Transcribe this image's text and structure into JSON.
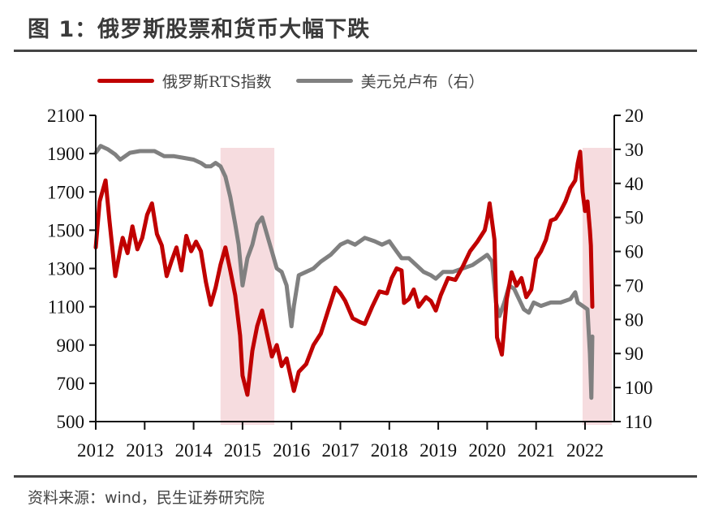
{
  "title": "图 1：俄罗斯股票和货币大幅下跌",
  "source": "资料来源：wind，民生证券研究院",
  "legend": [
    {
      "label": "俄罗斯RTS指数",
      "color": "#c00000"
    },
    {
      "label": "美元兑卢布（右）",
      "color": "#808080"
    }
  ],
  "chart_data": {
    "type": "line",
    "title": "图 1：俄罗斯股票和货币大幅下跌",
    "xlabel": "",
    "ylabel_left": "俄罗斯RTS指数",
    "ylabel_right": "美元兑卢布（右）",
    "x_ticks": [
      "2012",
      "2013",
      "2014",
      "2015",
      "2016",
      "2017",
      "2018",
      "2019",
      "2020",
      "2021",
      "2022"
    ],
    "y_left_ticks": [
      500,
      700,
      900,
      1100,
      1300,
      1500,
      1700,
      1900,
      2100
    ],
    "y_right_ticks": [
      20,
      30,
      40,
      50,
      60,
      70,
      80,
      90,
      100,
      110
    ],
    "ylim_left": [
      500,
      2100
    ],
    "ylim_right": [
      20,
      110
    ],
    "right_axis_inverted": true,
    "grid": false,
    "legend_position": "top",
    "shaded_periods": [
      {
        "start": 2014.55,
        "end": 2015.65,
        "color": "#f6dcdf"
      },
      {
        "start": 2021.95,
        "end": 2022.55,
        "color": "#f6dcdf"
      }
    ],
    "series": [
      {
        "name": "俄罗斯RTS指数",
        "axis": "left",
        "color": "#c00000",
        "x": [
          2012.0,
          2012.08,
          2012.2,
          2012.28,
          2012.4,
          2012.5,
          2012.55,
          2012.65,
          2012.75,
          2012.85,
          2012.95,
          2013.05,
          2013.15,
          2013.25,
          2013.35,
          2013.45,
          2013.55,
          2013.65,
          2013.75,
          2013.85,
          2013.95,
          2014.05,
          2014.15,
          2014.25,
          2014.35,
          2014.45,
          2014.55,
          2014.65,
          2014.75,
          2014.85,
          2014.95,
          2015.0,
          2015.1,
          2015.2,
          2015.3,
          2015.4,
          2015.5,
          2015.6,
          2015.7,
          2015.8,
          2015.9,
          2016.05,
          2016.15,
          2016.3,
          2016.45,
          2016.6,
          2016.75,
          2016.9,
          2017.0,
          2017.1,
          2017.25,
          2017.4,
          2017.5,
          2017.65,
          2017.8,
          2017.95,
          2018.05,
          2018.15,
          2018.25,
          2018.3,
          2018.4,
          2018.5,
          2018.6,
          2018.75,
          2018.85,
          2018.95,
          2019.05,
          2019.2,
          2019.35,
          2019.5,
          2019.65,
          2019.8,
          2019.95,
          2020.0,
          2020.05,
          2020.15,
          2020.2,
          2020.3,
          2020.4,
          2020.5,
          2020.6,
          2020.7,
          2020.8,
          2020.9,
          2021.0,
          2021.1,
          2021.2,
          2021.3,
          2021.4,
          2021.5,
          2021.6,
          2021.7,
          2021.8,
          2021.85,
          2021.9,
          2021.95,
          2022.0,
          2022.05,
          2022.1,
          2022.12,
          2022.15
        ],
        "values": [
          1410,
          1650,
          1760,
          1550,
          1260,
          1400,
          1460,
          1380,
          1520,
          1400,
          1460,
          1580,
          1640,
          1480,
          1420,
          1260,
          1340,
          1410,
          1290,
          1470,
          1390,
          1440,
          1390,
          1230,
          1110,
          1200,
          1320,
          1410,
          1290,
          1160,
          950,
          740,
          640,
          870,
          1000,
          1080,
          960,
          840,
          900,
          790,
          830,
          660,
          760,
          800,
          900,
          960,
          1080,
          1200,
          1170,
          1130,
          1040,
          1020,
          1010,
          1100,
          1180,
          1170,
          1250,
          1300,
          1290,
          1120,
          1140,
          1190,
          1100,
          1150,
          1130,
          1080,
          1160,
          1250,
          1240,
          1310,
          1390,
          1440,
          1500,
          1560,
          1640,
          1450,
          940,
          850,
          1140,
          1280,
          1210,
          1250,
          1150,
          1190,
          1350,
          1390,
          1450,
          1550,
          1560,
          1600,
          1650,
          1720,
          1760,
          1850,
          1910,
          1700,
          1600,
          1650,
          1500,
          1420,
          1100
        ]
      },
      {
        "name": "美元兑卢布（右）",
        "axis": "right",
        "color": "#808080",
        "x": [
          2012.0,
          2012.1,
          2012.25,
          2012.4,
          2012.5,
          2012.7,
          2012.9,
          2013.05,
          2013.2,
          2013.4,
          2013.6,
          2013.8,
          2014.0,
          2014.15,
          2014.25,
          2014.35,
          2014.45,
          2014.55,
          2014.65,
          2014.75,
          2014.85,
          2014.92,
          2015.0,
          2015.05,
          2015.1,
          2015.2,
          2015.3,
          2015.4,
          2015.5,
          2015.6,
          2015.7,
          2015.8,
          2015.9,
          2016.0,
          2016.05,
          2016.15,
          2016.3,
          2016.45,
          2016.6,
          2016.8,
          2017.0,
          2017.15,
          2017.3,
          2017.5,
          2017.7,
          2017.85,
          2018.0,
          2018.15,
          2018.25,
          2018.4,
          2018.55,
          2018.7,
          2018.85,
          2018.95,
          2019.1,
          2019.3,
          2019.5,
          2019.7,
          2019.9,
          2020.0,
          2020.1,
          2020.18,
          2020.25,
          2020.35,
          2020.45,
          2020.55,
          2020.65,
          2020.75,
          2020.85,
          2020.95,
          2021.1,
          2021.3,
          2021.5,
          2021.7,
          2021.8,
          2021.85,
          2021.95,
          2022.05,
          2022.1,
          2022.13,
          2022.15
        ],
        "values": [
          31,
          29,
          30,
          31.5,
          33,
          31,
          30.5,
          30.5,
          30.5,
          32,
          32,
          32.5,
          33,
          34,
          35,
          35,
          34,
          35,
          38,
          44,
          52,
          58,
          70,
          66,
          62,
          58,
          52,
          50,
          55,
          60,
          65,
          66,
          70,
          82,
          76,
          67,
          66,
          65,
          63,
          61,
          58,
          57,
          58,
          56,
          57,
          58,
          57,
          60,
          62,
          62,
          64,
          66,
          67,
          68,
          66,
          66,
          65,
          64,
          62,
          61,
          63,
          75,
          79,
          75,
          70,
          71,
          74,
          77,
          78,
          75,
          76,
          75,
          75,
          74,
          72,
          75,
          76,
          77,
          90,
          103,
          85
        ]
      }
    ]
  }
}
